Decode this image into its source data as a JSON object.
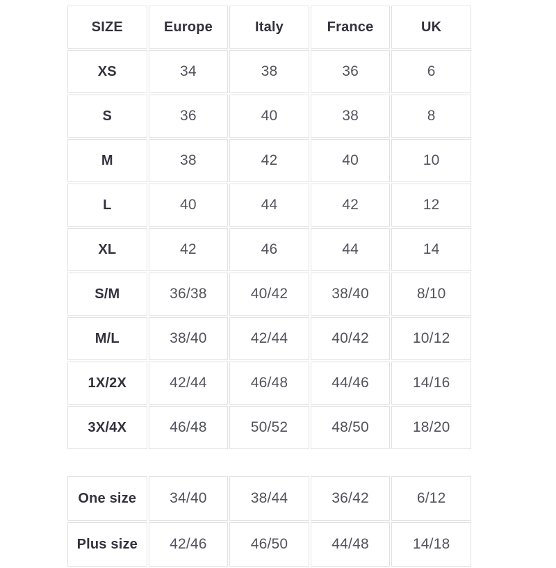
{
  "style": {
    "border_color": "#e2e2e2",
    "header_text_color": "#32323e",
    "value_text_color": "#53535f",
    "background_color": "#ffffff"
  },
  "chart_data": [
    {
      "type": "table",
      "columns": [
        "SIZE",
        "Europe",
        "Italy",
        "France",
        "UK"
      ],
      "rows": [
        [
          "XS",
          "34",
          "38",
          "36",
          "6"
        ],
        [
          "S",
          "36",
          "40",
          "38",
          "8"
        ],
        [
          "M",
          "38",
          "42",
          "40",
          "10"
        ],
        [
          "L",
          "40",
          "44",
          "42",
          "12"
        ],
        [
          "XL",
          "42",
          "46",
          "44",
          "14"
        ],
        [
          "S/M",
          "36/38",
          "40/42",
          "38/40",
          "8/10"
        ],
        [
          "M/L",
          "38/40",
          "42/44",
          "40/42",
          "10/12"
        ],
        [
          "1X/2X",
          "42/44",
          "46/48",
          "44/46",
          "14/16"
        ],
        [
          "3X/4X",
          "46/48",
          "50/52",
          "48/50",
          "18/20"
        ]
      ]
    },
    {
      "type": "table",
      "rows": [
        [
          "One size",
          "34/40",
          "38/44",
          "36/42",
          "6/12"
        ],
        [
          "Plus size",
          "42/46",
          "46/50",
          "44/48",
          "14/18"
        ]
      ]
    }
  ]
}
